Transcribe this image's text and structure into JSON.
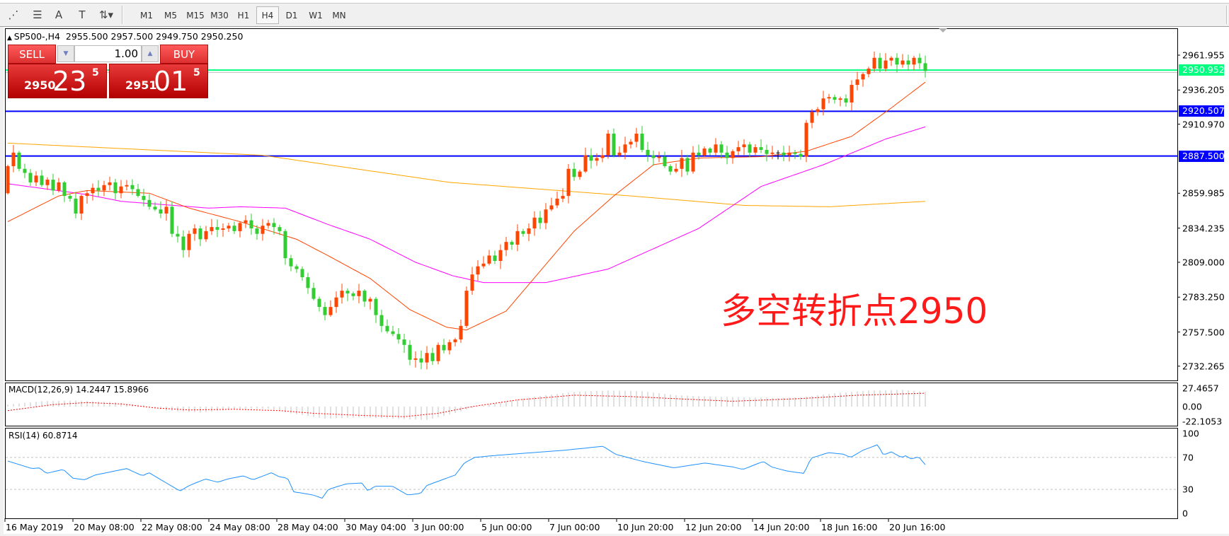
{
  "toolbar": {
    "tools": [
      {
        "icon": "fibonacci-fan-icon",
        "glyph": "⋰"
      },
      {
        "icon": "fibonacci-lines-icon",
        "glyph": "☰"
      },
      {
        "icon": "text-tool-icon",
        "glyph": "A"
      },
      {
        "icon": "text-label-icon",
        "glyph": "T"
      },
      {
        "icon": "arrows-tool-icon",
        "glyph": "⇅▾"
      }
    ],
    "timeframes": [
      "M1",
      "M5",
      "M15",
      "M30",
      "H1",
      "H4",
      "D1",
      "W1",
      "MN"
    ],
    "active": "H4"
  },
  "chart": {
    "header": "SP500-,H4  2955.500 2957.500 2949.750 2950.250",
    "macd_label": "MACD(12,26,9) 14.2447 15.8966",
    "rsi_label": "RSI(14) 60.8714",
    "annotation": "多空转折点2950"
  },
  "trade_panel": {
    "sell_label": "SELL",
    "buy_label": "BUY",
    "lot": "1.00",
    "sell_price": {
      "small": "2950",
      "big": "23",
      "sup": "5"
    },
    "buy_price": {
      "small": "2951",
      "big": "01",
      "sup": "5"
    }
  },
  "colors": {
    "up": "#ff4500",
    "down": "#32cd32",
    "ma_fast": "#ff4500",
    "ma_mid": "#ff00ff",
    "ma_slow": "#ffa500",
    "level": "#0000ff",
    "bid": "#00ff7f",
    "rsi": "#1e90ff",
    "macd_hist": "#c0c0c0",
    "macd_signal": "#ff0000"
  },
  "chart_data": [
    {
      "type": "candlestick",
      "symbol": "SP500-",
      "timeframe": "H4",
      "ylim": [
        2720,
        2975
      ],
      "price_ticks": [
        "2961.955",
        "2936.205",
        "2910.970",
        "2859.985",
        "2834.235",
        "2809.000",
        "2783.250",
        "2757.500",
        "2732.265"
      ],
      "levels": [
        {
          "value": 2950.952,
          "label": "2950.952",
          "color": "#00ff7f"
        },
        {
          "value": 2920.507,
          "label": "2920.507",
          "color": "#0000ff"
        },
        {
          "value": 2887.5,
          "label": "2887.500",
          "color": "#0000ff"
        }
      ],
      "bid": 2950.25,
      "time_ticks": [
        {
          "bar": 0,
          "label": "16 May 2019"
        },
        {
          "bar": 12,
          "label": "20 May 08:00"
        },
        {
          "bar": 24,
          "label": "22 May 08:00"
        },
        {
          "bar": 36,
          "label": "24 May 08:00"
        },
        {
          "bar": 48,
          "label": "28 May 04:00"
        },
        {
          "bar": 60,
          "label": "30 May 04:00"
        },
        {
          "bar": 72,
          "label": "3 Jun 00:00"
        },
        {
          "bar": 84,
          "label": "5 Jun 00:00"
        },
        {
          "bar": 96,
          "label": "7 Jun 00:00"
        },
        {
          "bar": 108,
          "label": "10 Jun 20:00"
        },
        {
          "bar": 120,
          "label": "12 Jun 20:00"
        },
        {
          "bar": 132,
          "label": "14 Jun 20:00"
        },
        {
          "bar": 144,
          "label": "18 Jun 16:00"
        },
        {
          "bar": 156,
          "label": "20 Jun 16:00"
        }
      ],
      "first_open": 2860,
      "closes": [
        2880,
        2890,
        2878,
        2875,
        2868,
        2873,
        2866,
        2870,
        2862,
        2868,
        2858,
        2856,
        2845,
        2858,
        2860,
        2864,
        2862,
        2866,
        2868,
        2860,
        2865,
        2866,
        2863,
        2858,
        2855,
        2850,
        2848,
        2845,
        2850,
        2830,
        2828,
        2818,
        2830,
        2834,
        2826,
        2832,
        2835,
        2833,
        2834,
        2836,
        2832,
        2838,
        2840,
        2834,
        2830,
        2836,
        2838,
        2835,
        2832,
        2812,
        2806,
        2804,
        2798,
        2790,
        2782,
        2776,
        2770,
        2776,
        2783,
        2788,
        2786,
        2784,
        2788,
        2780,
        2782,
        2770,
        2762,
        2758,
        2756,
        2752,
        2748,
        2737,
        2738,
        2735,
        2742,
        2736,
        2748,
        2744,
        2750,
        2752,
        2762,
        2788,
        2800,
        2806,
        2808,
        2814,
        2810,
        2818,
        2824,
        2822,
        2832,
        2830,
        2834,
        2842,
        2838,
        2848,
        2851,
        2856,
        2858,
        2878,
        2872,
        2876,
        2888,
        2884,
        2886,
        2888,
        2904,
        2888,
        2890,
        2896,
        2898,
        2904,
        2892,
        2888,
        2886,
        2887,
        2880,
        2876,
        2878,
        2886,
        2876,
        2890,
        2888,
        2893,
        2890,
        2896,
        2890,
        2886,
        2891,
        2894,
        2896,
        2890,
        2894,
        2892,
        2889,
        2890,
        2890,
        2888,
        2890,
        2889,
        2887,
        2912,
        2920,
        2922,
        2930,
        2931,
        2929,
        2930,
        2927,
        2940,
        2944,
        2948,
        2952,
        2960,
        2952,
        2958,
        2960,
        2955,
        2958,
        2955,
        2960,
        2956,
        2950.25
      ],
      "ma_fast": [
        [
          0,
          2839
        ],
        [
          9,
          2858
        ],
        [
          14,
          2862
        ],
        [
          25,
          2860
        ],
        [
          32,
          2849
        ],
        [
          41,
          2839
        ],
        [
          51,
          2826
        ],
        [
          56.5,
          2814
        ],
        [
          64,
          2797
        ],
        [
          71,
          2774
        ],
        [
          77.5,
          2761
        ],
        [
          81,
          2759
        ],
        [
          88,
          2773
        ],
        [
          100,
          2832
        ],
        [
          107,
          2858
        ],
        [
          114,
          2881
        ],
        [
          122,
          2886
        ],
        [
          133,
          2887
        ],
        [
          141,
          2891
        ],
        [
          149,
          2902
        ],
        [
          156,
          2923
        ],
        [
          162,
          2942
        ]
      ],
      "ma_mid": [
        [
          0,
          2867
        ],
        [
          14,
          2859
        ],
        [
          20,
          2854
        ],
        [
          35.5,
          2849
        ],
        [
          41,
          2850
        ],
        [
          49,
          2849
        ],
        [
          56.5,
          2837
        ],
        [
          64,
          2826
        ],
        [
          72,
          2809
        ],
        [
          78.6,
          2799
        ],
        [
          84,
          2794
        ],
        [
          95,
          2794
        ],
        [
          106,
          2804
        ],
        [
          122,
          2834
        ],
        [
          133,
          2865
        ],
        [
          144,
          2881
        ],
        [
          155,
          2900
        ],
        [
          162,
          2909
        ]
      ],
      "ma_slow": [
        [
          0,
          2897
        ],
        [
          45,
          2888
        ],
        [
          78,
          2868
        ],
        [
          110,
          2858
        ],
        [
          130,
          2851
        ],
        [
          145,
          2850
        ],
        [
          162,
          2854
        ]
      ]
    },
    {
      "type": "bar+line",
      "name": "MACD(12,26,9)",
      "ticks": [
        "27.4657",
        "0.00",
        "-22.1053"
      ],
      "ylim": [
        -22.1053,
        27.4657
      ],
      "histogram": [
        [
          0,
          3
        ],
        [
          6,
          8
        ],
        [
          12,
          9
        ],
        [
          18,
          7
        ],
        [
          24,
          2
        ],
        [
          28,
          -6
        ],
        [
          34,
          -9
        ],
        [
          40,
          -4
        ],
        [
          46,
          -3
        ],
        [
          50,
          -10
        ],
        [
          56,
          -18
        ],
        [
          62,
          -16
        ],
        [
          68,
          -18
        ],
        [
          74,
          -20
        ],
        [
          78,
          -12
        ],
        [
          82,
          -2
        ],
        [
          88,
          8
        ],
        [
          94,
          16
        ],
        [
          100,
          22
        ],
        [
          106,
          24
        ],
        [
          112,
          23
        ],
        [
          118,
          17
        ],
        [
          124,
          15
        ],
        [
          130,
          14
        ],
        [
          136,
          13
        ],
        [
          140,
          14
        ],
        [
          146,
          20
        ],
        [
          152,
          24
        ],
        [
          158,
          25
        ],
        [
          162,
          22
        ]
      ],
      "signal": [
        [
          0,
          -6
        ],
        [
          8,
          3
        ],
        [
          14,
          6
        ],
        [
          20,
          4
        ],
        [
          26,
          -2
        ],
        [
          32,
          -5
        ],
        [
          40,
          -4
        ],
        [
          48,
          -6
        ],
        [
          54,
          -10
        ],
        [
          62,
          -13
        ],
        [
          70,
          -15
        ],
        [
          76,
          -10
        ],
        [
          82,
          0
        ],
        [
          90,
          10
        ],
        [
          100,
          17
        ],
        [
          110,
          15
        ],
        [
          120,
          11
        ],
        [
          128,
          8
        ],
        [
          134,
          10
        ],
        [
          140,
          12
        ],
        [
          150,
          17
        ],
        [
          162,
          20
        ]
      ]
    },
    {
      "type": "line",
      "name": "RSI(14)",
      "ticks": [
        "100",
        "70",
        "30",
        "0"
      ],
      "ylim": [
        0,
        100
      ],
      "levels": [
        70,
        30
      ],
      "values": [
        [
          0,
          65.5
        ],
        [
          4.3,
          56
        ],
        [
          5.6,
          57
        ],
        [
          6.8,
          50
        ],
        [
          9.8,
          55
        ],
        [
          11.5,
          44
        ],
        [
          13.6,
          42
        ],
        [
          15.4,
          48
        ],
        [
          21,
          56
        ],
        [
          23.8,
          47
        ],
        [
          24.9,
          51
        ],
        [
          30.4,
          28
        ],
        [
          32.1,
          35
        ],
        [
          34.9,
          43
        ],
        [
          37.1,
          39
        ],
        [
          38.8,
          43
        ],
        [
          41.6,
          47
        ],
        [
          43.3,
          42
        ],
        [
          46.6,
          51
        ],
        [
          47.8,
          46
        ],
        [
          49.4,
          44
        ],
        [
          50.5,
          27
        ],
        [
          53.9,
          23
        ],
        [
          55.5,
          19
        ],
        [
          56.6,
          30
        ],
        [
          59.8,
          37
        ],
        [
          62.5,
          38
        ],
        [
          63.6,
          28
        ],
        [
          64.8,
          34
        ],
        [
          67.9,
          34
        ],
        [
          70.6,
          23
        ],
        [
          72.9,
          25
        ],
        [
          74,
          35
        ],
        [
          79,
          48
        ],
        [
          80.6,
          63
        ],
        [
          82.4,
          70
        ],
        [
          86.1,
          72.5
        ],
        [
          98.3,
          79
        ],
        [
          105.1,
          84
        ],
        [
          107.3,
          74
        ],
        [
          112.1,
          65
        ],
        [
          117.6,
          57
        ],
        [
          123.1,
          63
        ],
        [
          128.1,
          58
        ],
        [
          129.8,
          55
        ],
        [
          133.4,
          65
        ],
        [
          134.9,
          58
        ],
        [
          137.6,
          53
        ],
        [
          140.6,
          50
        ],
        [
          141.8,
          69
        ],
        [
          144.9,
          76
        ],
        [
          147.6,
          74
        ],
        [
          148.8,
          70
        ],
        [
          151,
          79
        ],
        [
          153.6,
          86
        ],
        [
          154.6,
          73
        ],
        [
          156,
          77
        ],
        [
          157.8,
          70
        ],
        [
          158.5,
          72
        ],
        [
          159.6,
          68
        ],
        [
          160.8,
          71
        ],
        [
          162,
          61
        ]
      ]
    }
  ]
}
